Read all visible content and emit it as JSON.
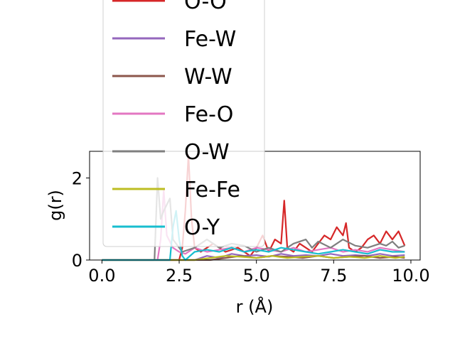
{
  "chart_data": {
    "type": "line",
    "xlabel": "r (Å)",
    "ylabel": "g(r)",
    "xlim": [
      -0.4,
      10.3
    ],
    "ylim": [
      0,
      2.65
    ],
    "xticks": [
      0.0,
      2.5,
      5.0,
      7.5,
      10.0
    ],
    "xtick_labels": [
      "0.0",
      "2.5",
      "5.0",
      "7.5",
      "10.0"
    ],
    "yticks": [
      0,
      2
    ],
    "ytick_labels": [
      "0",
      "2"
    ],
    "grid": false,
    "legend_placement": "upper-left, extending above axes",
    "series": [
      {
        "name": "O-O",
        "color": "#d62728",
        "x": [
          0,
          2.0,
          2.5,
          2.6,
          2.7,
          2.8,
          2.9,
          3.0,
          3.2,
          3.6,
          4.0,
          4.4,
          4.8,
          5.0,
          5.2,
          5.4,
          5.6,
          5.8,
          5.9,
          6.0,
          6.2,
          6.4,
          6.6,
          6.8,
          7.0,
          7.2,
          7.4,
          7.6,
          7.8,
          7.9,
          8.0,
          8.2,
          8.4,
          8.6,
          8.8,
          9.0,
          9.2,
          9.4,
          9.6,
          9.8
        ],
        "y": [
          0,
          0,
          0,
          0.3,
          1.2,
          2.55,
          1.0,
          0.3,
          0.2,
          0.4,
          0.2,
          0.3,
          0.1,
          0.3,
          0.6,
          0.2,
          0.5,
          0.4,
          1.45,
          0.3,
          0.2,
          0.4,
          0.3,
          0.2,
          0.4,
          0.6,
          0.5,
          0.8,
          0.6,
          0.9,
          0.3,
          0.2,
          0.3,
          0.5,
          0.6,
          0.4,
          0.7,
          0.5,
          0.7,
          0.35
        ]
      },
      {
        "name": "Fe-W",
        "color": "#9467bd",
        "x": [
          0,
          3.0,
          3.4,
          3.8,
          4.2,
          4.6,
          5.0,
          5.4,
          5.8,
          6.2,
          6.6,
          7.0,
          7.4,
          7.8,
          8.2,
          8.6,
          9.0,
          9.4,
          9.8
        ],
        "y": [
          0,
          0,
          0.1,
          0.05,
          0.15,
          0.1,
          0.12,
          0.08,
          0.15,
          0.1,
          0.12,
          0.1,
          0.15,
          0.1,
          0.12,
          0.1,
          0.15,
          0.1,
          0.12
        ]
      },
      {
        "name": "W-W",
        "color": "#8c564b",
        "x": [
          0,
          3.5,
          4.0,
          4.5,
          5.0,
          5.5,
          6.0,
          6.5,
          7.0,
          7.5,
          8.0,
          8.5,
          9.0,
          9.5,
          9.8
        ],
        "y": [
          0,
          0,
          0.05,
          0.1,
          0.05,
          0.1,
          0.08,
          0.05,
          0.1,
          0.05,
          0.08,
          0.1,
          0.05,
          0.08,
          0.05
        ]
      },
      {
        "name": "Fe-O",
        "color": "#e377c2",
        "x": [
          0,
          1.8,
          1.9,
          2.0,
          2.1,
          2.3,
          2.5,
          2.7,
          3.0,
          3.4,
          3.8,
          4.2,
          4.6,
          5.0,
          5.4,
          5.8,
          6.2,
          6.6,
          7.0,
          7.4,
          7.8,
          8.2,
          8.6,
          9.0,
          9.4,
          9.8
        ],
        "y": [
          0,
          0,
          0.5,
          1.7,
          0.6,
          0.3,
          0.2,
          0.15,
          0.3,
          0.2,
          0.25,
          0.3,
          0.2,
          0.3,
          0.25,
          0.2,
          0.3,
          0.2,
          0.25,
          0.3,
          0.2,
          0.25,
          0.2,
          0.3,
          0.25,
          0.2
        ]
      },
      {
        "name": "O-W",
        "color": "#7f7f7f",
        "x": [
          0,
          1.7,
          1.8,
          1.9,
          2.0,
          2.2,
          2.3,
          2.6,
          3.0,
          3.4,
          3.8,
          4.2,
          4.6,
          5.0,
          5.4,
          5.8,
          6.2,
          6.6,
          6.8,
          7.0,
          7.4,
          7.8,
          8.2,
          8.6,
          9.0,
          9.2,
          9.4,
          9.6,
          9.8
        ],
        "y": [
          0,
          0,
          2.0,
          1.0,
          1.2,
          1.5,
          0.5,
          0.2,
          0.3,
          0.5,
          0.3,
          0.4,
          0.35,
          0.2,
          0.3,
          0.2,
          0.4,
          0.5,
          0.3,
          0.45,
          0.3,
          0.5,
          0.35,
          0.3,
          0.4,
          0.35,
          0.45,
          0.3,
          0.35
        ]
      },
      {
        "name": "Fe-Fe",
        "color": "#bcbd22",
        "x": [
          0,
          3.0,
          3.5,
          4.0,
          4.5,
          5.0,
          5.5,
          6.0,
          6.5,
          7.0,
          7.5,
          8.0,
          8.5,
          9.0,
          9.5,
          9.8
        ],
        "y": [
          0,
          0,
          0.05,
          0.1,
          0.08,
          0.05,
          0.1,
          0.05,
          0.08,
          0.1,
          0.05,
          0.08,
          0.05,
          0.1,
          0.05,
          0.08
        ]
      },
      {
        "name": "O-Y",
        "color": "#17becf",
        "x": [
          0,
          2.2,
          2.3,
          2.4,
          2.5,
          2.6,
          2.7,
          3.0,
          3.4,
          3.8,
          4.2,
          4.6,
          5.0,
          5.4,
          5.8,
          6.2,
          6.6,
          7.0,
          7.4,
          7.8,
          8.2,
          8.6,
          9.0,
          9.4,
          9.8
        ],
        "y": [
          0,
          0,
          0.8,
          1.2,
          0.5,
          0.1,
          0,
          0.2,
          0.25,
          0.2,
          0.3,
          0.2,
          0.25,
          0.2,
          0.3,
          0.25,
          0.2,
          0.15,
          0.2,
          0.25,
          0.2,
          0.15,
          0.25,
          0.2,
          0.2
        ]
      }
    ]
  }
}
